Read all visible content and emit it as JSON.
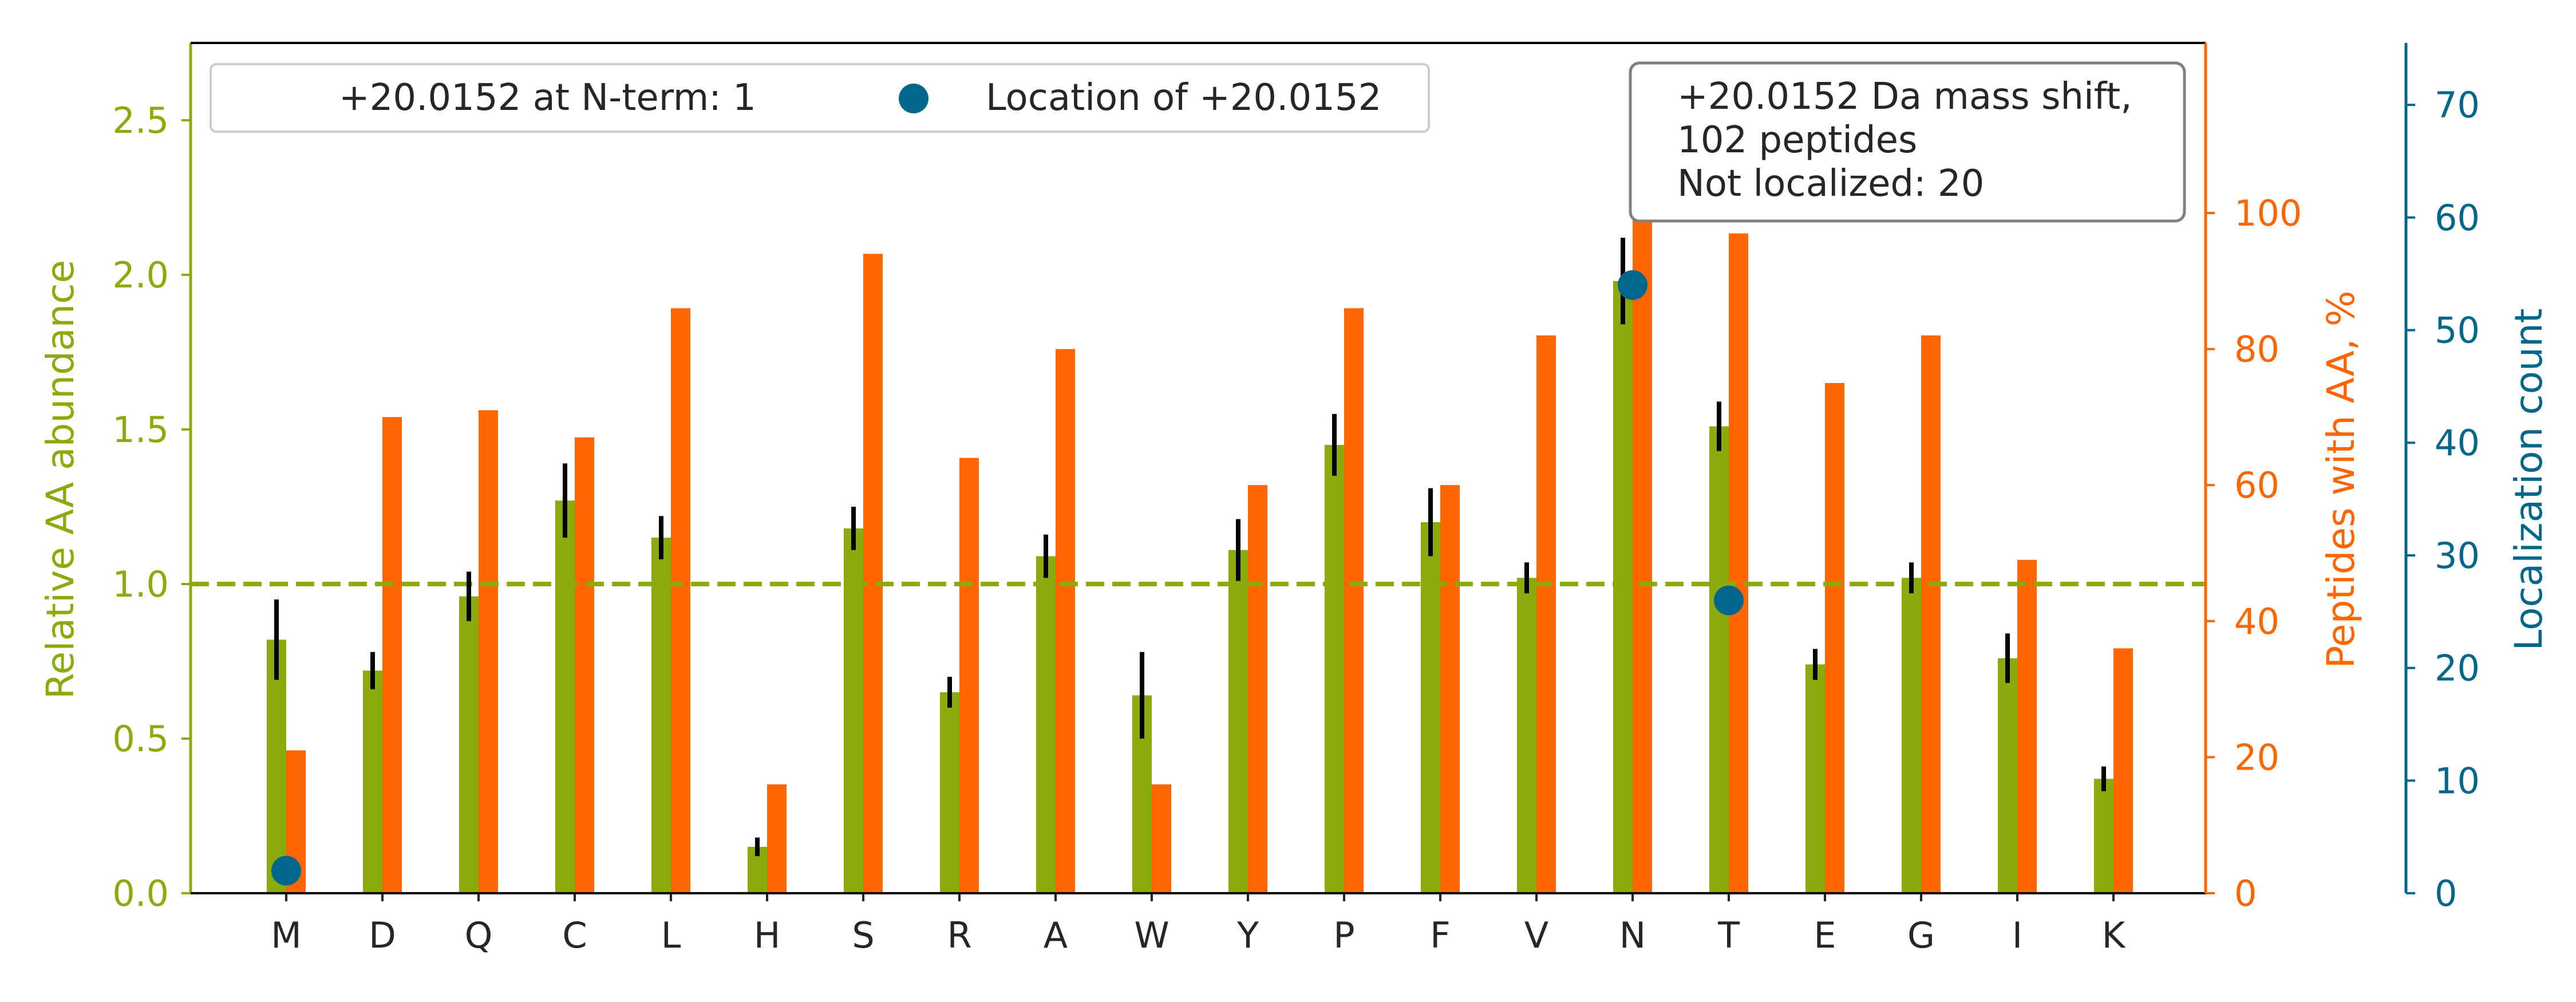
{
  "colors": {
    "green": "#8aab0a",
    "orange": "#ff6600",
    "blue": "#00678a",
    "text": "#262626"
  },
  "legend": {
    "nterm_label": "+20.0152 at N-term: 1",
    "location_label": "Location of +20.0152"
  },
  "note": {
    "line1": "+20.0152 Da mass shift,",
    "line2": "102 peptides",
    "line3": "Not localized: 20"
  },
  "chart_data": {
    "type": "bar",
    "categories": [
      "M",
      "D",
      "Q",
      "C",
      "L",
      "H",
      "S",
      "R",
      "A",
      "W",
      "Y",
      "P",
      "F",
      "V",
      "N",
      "T",
      "E",
      "G",
      "I",
      "K"
    ],
    "series": [
      {
        "axis": "left",
        "values": [
          0.82,
          0.72,
          0.96,
          1.27,
          1.15,
          0.15,
          1.18,
          0.65,
          1.09,
          0.64,
          1.11,
          1.45,
          1.2,
          1.02,
          1.98,
          1.51,
          0.74,
          1.02,
          0.76,
          0.37
        ],
        "errors": [
          0.13,
          0.06,
          0.08,
          0.12,
          0.07,
          0.03,
          0.07,
          0.05,
          0.07,
          0.14,
          0.1,
          0.1,
          0.11,
          0.05,
          0.14,
          0.08,
          0.05,
          0.05,
          0.08,
          0.04
        ]
      },
      {
        "axis": "right",
        "values": [
          21,
          70,
          71,
          67,
          86,
          16,
          94,
          64,
          80,
          16,
          60,
          86,
          60,
          82,
          100,
          97,
          75,
          82,
          49,
          36
        ]
      },
      {
        "axis": "localization",
        "marker": "circle",
        "points": [
          {
            "category": "M",
            "value": 2
          },
          {
            "category": "N",
            "value": 54
          },
          {
            "category": "T",
            "value": 26
          }
        ]
      }
    ],
    "reference_line": {
      "y": 1.0,
      "style": "dashed"
    },
    "left_axis": {
      "label": "Relative AA abundance",
      "ylim": [
        0,
        2.75
      ],
      "ticks": [
        "0.0",
        "0.5",
        "1.0",
        "1.5",
        "2.0",
        "2.5"
      ]
    },
    "right_axis": {
      "label": "Peptides with AA, %",
      "ylim": [
        0,
        125
      ],
      "ticks": [
        "0",
        "20",
        "40",
        "60",
        "80",
        "100"
      ]
    },
    "third_axis": {
      "label": "Localization count",
      "ylim": [
        0,
        75.5
      ],
      "ticks": [
        "0",
        "10",
        "20",
        "30",
        "40",
        "50",
        "60",
        "70"
      ]
    },
    "grid": false,
    "legend_position": "top-left"
  }
}
